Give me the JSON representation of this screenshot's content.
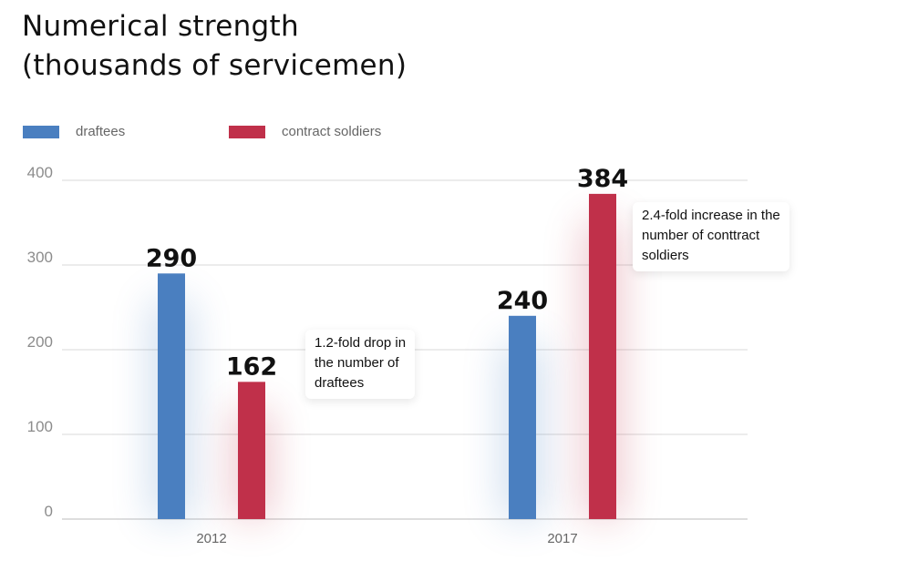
{
  "title_lines": [
    "Numerical strength",
    "(thousands of servicemen)"
  ],
  "legend": [
    {
      "label": "draftees",
      "color": "#4a7fc0"
    },
    {
      "label": "contract soldiers",
      "color": "#c0304a"
    }
  ],
  "annotations": [
    {
      "lines": [
        "1.2-fold drop in",
        "the number of",
        "draftees"
      ]
    },
    {
      "lines": [
        "2.4-fold increase in the",
        "number of conttract",
        "soldiers"
      ]
    }
  ],
  "chart_data": {
    "type": "bar",
    "title": "Numerical strength (thousands of servicemen)",
    "categories": [
      "2012",
      "2017"
    ],
    "series": [
      {
        "name": "draftees",
        "color": "#4a7fc0",
        "values": [
          290,
          240
        ]
      },
      {
        "name": "contract soldiers",
        "color": "#c0304a",
        "values": [
          162,
          384
        ]
      }
    ],
    "data_labels": [
      "290",
      "162",
      "240",
      "384"
    ],
    "ylim": [
      0,
      400
    ],
    "yticks": [
      0,
      100,
      200,
      300,
      400
    ],
    "grid": true,
    "legend_position": "top-left"
  }
}
